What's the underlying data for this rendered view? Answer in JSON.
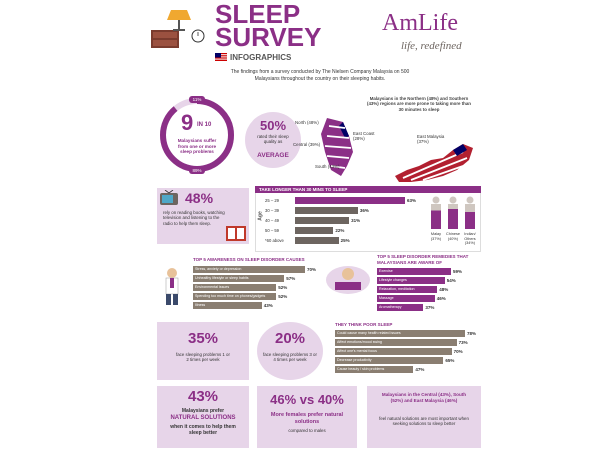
{
  "header": {
    "title_line1": "SLEEP",
    "title_line2": "SURVEY",
    "subtitle": "INFOGRAPHICS",
    "intro": "The findings from a survey conducted by The Nielsen Company Malaysia on 500 Malaysians throughout the country on their sleeping habits.",
    "brand_name": "AmLife",
    "brand_tagline": "life, redefined"
  },
  "ring": {
    "top_pct": "11%",
    "bottom_pct": "89%",
    "big_number": "9",
    "in_text": "IN 10",
    "caption": "Malaysians suffer from one or more sleep problems",
    "fraction_suffering": 0.89
  },
  "average": {
    "pct": "50%",
    "text": "rated their sleep quality as",
    "emphasis": "AVERAGE"
  },
  "map": {
    "title": "Malaysians in the Northern (48%) and Southern (43%) regions are more prone to taking more than 30 minutes to sleep",
    "north": "North (48%)",
    "east_coast": "East Coast (28%)",
    "central": "Central (39%)",
    "south": "South (43%)",
    "east_malaysia": "East Malaysia (37%)"
  },
  "books": {
    "pct": "48%",
    "text": "rely on reading books, watching television and listening to the radio to help them sleep."
  },
  "age_chart": {
    "title": "TAKE LONGER THAN 30 MINS TO SLEEP",
    "axis_label": "Age",
    "rows": [
      {
        "label": "25 – 29",
        "value": 63,
        "display": "63%"
      },
      {
        "label": "30 – 39",
        "value": 36,
        "display": "36%"
      },
      {
        "label": "40 – 49",
        "value": 31,
        "display": "31%"
      },
      {
        "label": "50 – 59",
        "value": 22,
        "display": "22%"
      },
      {
        "label": "*60 above",
        "value": 25,
        "display": "25%"
      }
    ],
    "races": [
      {
        "label": "Malay (37%)",
        "value": 37
      },
      {
        "label": "Chinese (40%)",
        "value": 40
      },
      {
        "label": "Indian/ Others (34%)",
        "value": 34
      }
    ]
  },
  "causes": {
    "title": "TOP 5 AWARENESS ON SLEEP DISORDER CAUSES",
    "rows": [
      {
        "label": "Stress, anxiety or depression",
        "value": 70,
        "display": "70%"
      },
      {
        "label": "Unhealthy lifestyle or sleep habits",
        "value": 57,
        "display": "57%"
      },
      {
        "label": "Environmental issues",
        "value": 52,
        "display": "52%"
      },
      {
        "label": "Spending too much time on phones/gadgets",
        "value": 52,
        "display": "52%"
      },
      {
        "label": "Illness",
        "value": 43,
        "display": "43%"
      }
    ]
  },
  "remedies": {
    "title": "TOP 5 SLEEP DISORDER REMEDIES THAT MALAYSIANS ARE AWARE OF",
    "rows": [
      {
        "label": "Exercise",
        "value": 59,
        "display": "59%"
      },
      {
        "label": "Lifestyle changes",
        "value": 54,
        "display": "54%"
      },
      {
        "label": "Relaxation, meditation",
        "value": 48,
        "display": "48%"
      },
      {
        "label": "Massage",
        "value": 46,
        "display": "46%"
      },
      {
        "label": "Aromatherapy",
        "value": 37,
        "display": "37%"
      }
    ]
  },
  "poor_sleep": {
    "title": "THEY THINK POOR SLEEP",
    "rows": [
      {
        "label": "Could cause many health related issues",
        "value": 78,
        "display": "78%"
      },
      {
        "label": "Affect emotions/mood swing",
        "value": 73,
        "display": "73%"
      },
      {
        "label": "Affect one's mental focus",
        "value": 70,
        "display": "70%"
      },
      {
        "label": "Decrease productivity",
        "value": 65,
        "display": "65%"
      },
      {
        "label": "Cause beauty / skin problems",
        "value": 47,
        "display": "47%"
      }
    ]
  },
  "face1": {
    "pct": "35%",
    "text": "face sleeping problems 1 or 2 times per week"
  },
  "face2": {
    "pct": "20%",
    "text": "face sleeping problems 3 or 4 times per week"
  },
  "natural": {
    "pct": "43%",
    "line1": "Malaysians prefer",
    "emphasis": "NATURAL SOLUTIONS",
    "line2": "when it comes to help them sleep better"
  },
  "gender": {
    "headline": "46% vs 40%",
    "text": "More females prefer natural solutions",
    "sub": "compared to males"
  },
  "regions": {
    "text1": "Malaysians in the Central (43%), South (52%) and East Malaysia (46%)",
    "text2": "feel natural solutions are most important when seeking solutions to sleep better"
  },
  "colors": {
    "purple": "#8b2f86",
    "lavender": "#e7d5e9",
    "bar_grey": "#8a7e71",
    "dark_grey": "#6d6560"
  }
}
